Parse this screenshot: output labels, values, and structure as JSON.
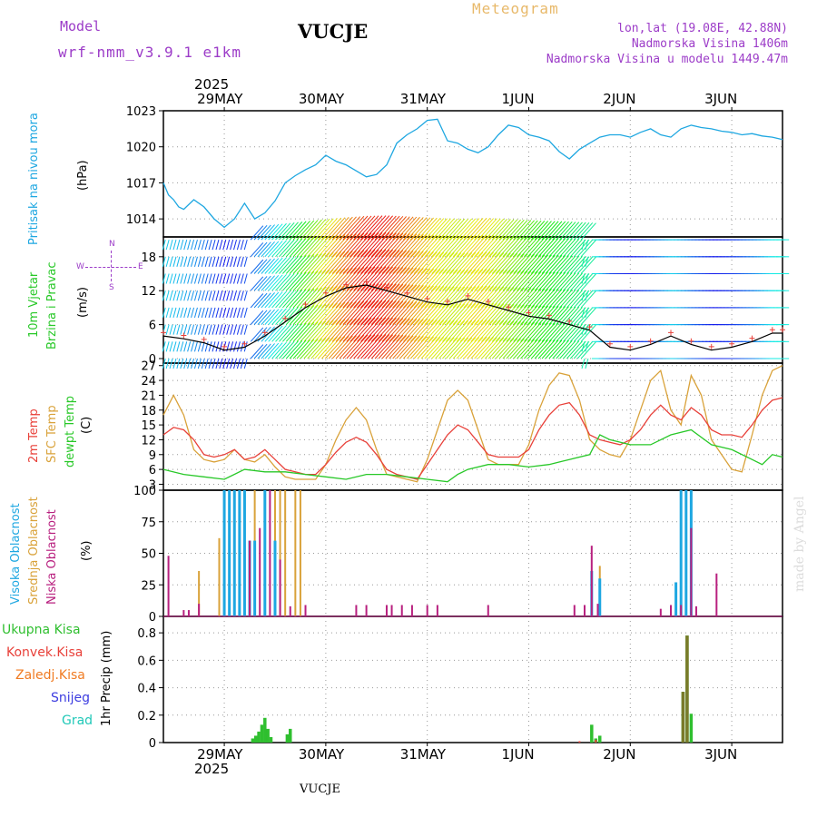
{
  "header": {
    "model_label": "Model",
    "model_name": "wrf-nmm_v3.9.1 e1km",
    "station": "VUCJE",
    "product": "Meteogram",
    "coords": "lon,lat (19.08E, 42.88N)",
    "altitude": "Nadmorska Visina 1406m",
    "model_altitude": "Nadmorska Visina u modelu 1449.47m",
    "watermark": "made by Angel",
    "footer_station": "VUCJE"
  },
  "time_axis": {
    "year": "2025",
    "days": [
      "29MAY",
      "30MAY",
      "31MAY",
      "1JUN",
      "2JUN",
      "3JUN"
    ],
    "day_positions": [
      1,
      2,
      3,
      4,
      5,
      6
    ],
    "range": [
      0.4,
      6.5
    ]
  },
  "colors": {
    "pressure": "#1ea7e1",
    "temp2m": "#e8413a",
    "sfc_temp": "#d9a23a",
    "dewpoint": "#28c828",
    "high_cloud": "#1ea7e1",
    "mid_cloud": "#d9a23a",
    "low_cloud": "#b8207f",
    "total_rain": "#2fbf2f",
    "conv_rain": "#e8413a",
    "freezing_rain": "#f07b22",
    "snow": "#3d3de0",
    "hail": "#20c8b8",
    "wind_dir_label": "#9c3cc8"
  },
  "panels": {
    "pressure": {
      "ylabel_a": "Pritisak na nivou mora",
      "ylabel_b": "(hPa)",
      "ticks": [
        "1014",
        "1017",
        "1020",
        "1023"
      ]
    },
    "wind": {
      "ylabel_a": "10m Vjetar",
      "ylabel_b": "Brzina i Pravac",
      "ylabel_c": "(m/s)",
      "ticks": [
        "0",
        "6",
        "12",
        "18"
      ],
      "compass_n": "N",
      "compass_s": "S",
      "compass_e": "E",
      "compass_w": "W"
    },
    "temperature": {
      "ylabel_a": "2m Temp",
      "ylabel_b": "SFC Temp",
      "ylabel_c": "dewpt Temp",
      "ylabel_d": "(C)",
      "ticks": [
        "3",
        "6",
        "9",
        "12",
        "15",
        "18",
        "21",
        "24",
        "27"
      ]
    },
    "cloud": {
      "ylabel_a": "Visoka Oblacnost",
      "ylabel_b": "Srednja Oblacnost",
      "ylabel_c": "Niska Oblacnost",
      "ylabel_d": "(%)",
      "ticks": [
        "0",
        "25",
        "50",
        "75",
        "100"
      ]
    },
    "precip": {
      "legend": [
        "Ukupna Kisa",
        "Konvek.Kisa",
        "Zaledj.Kisa",
        "Snijeg",
        "Grad"
      ],
      "ylabel": "1hr Precip (mm)",
      "ticks": [
        "0",
        "0.2",
        "0.4",
        "0.6",
        "0.8"
      ]
    }
  },
  "chart_data": [
    {
      "type": "line",
      "panel": "pressure",
      "ylim": [
        1012.5,
        1023
      ],
      "series": [
        {
          "key": "pressure",
          "x": [
            0.4,
            0.45,
            0.5,
            0.55,
            0.6,
            0.7,
            0.8,
            0.9,
            1.0,
            1.1,
            1.2,
            1.3,
            1.4,
            1.5,
            1.6,
            1.7,
            1.8,
            1.9,
            2.0,
            2.1,
            2.2,
            2.3,
            2.4,
            2.5,
            2.6,
            2.7,
            2.8,
            2.9,
            3.0,
            3.1,
            3.2,
            3.3,
            3.4,
            3.5,
            3.6,
            3.7,
            3.8,
            3.9,
            4.0,
            4.1,
            4.2,
            4.3,
            4.4,
            4.5,
            4.6,
            4.7,
            4.8,
            4.9,
            5.0,
            5.1,
            5.2,
            5.3,
            5.4,
            5.5,
            5.6,
            5.7,
            5.8,
            5.9,
            6.0,
            6.1,
            6.2,
            6.3,
            6.4,
            6.5
          ],
          "y": [
            1017.0,
            1016.0,
            1015.6,
            1015.0,
            1014.8,
            1015.6,
            1015.0,
            1014.0,
            1013.3,
            1014.0,
            1015.3,
            1014.0,
            1014.5,
            1015.5,
            1017.0,
            1017.6,
            1018.1,
            1018.5,
            1019.3,
            1018.8,
            1018.5,
            1018.0,
            1017.5,
            1017.7,
            1018.5,
            1020.3,
            1021.0,
            1021.5,
            1022.2,
            1022.3,
            1020.5,
            1020.3,
            1019.8,
            1019.5,
            1020.0,
            1021.0,
            1021.8,
            1021.6,
            1021.0,
            1020.8,
            1020.5,
            1019.6,
            1019.0,
            1019.8,
            1020.3,
            1020.8,
            1021.0,
            1021.0,
            1020.8,
            1021.2,
            1021.5,
            1021.0,
            1020.8,
            1021.5,
            1021.8,
            1021.6,
            1021.5,
            1021.3,
            1021.2,
            1021.0,
            1021.1,
            1020.9,
            1020.8,
            1020.6
          ]
        }
      ]
    },
    {
      "type": "line",
      "panel": "wind",
      "ylim": [
        -0.8,
        21.5
      ],
      "note_barbs": "wind vectors drawn along rows",
      "series": [
        {
          "key": "wind_speed",
          "x": [
            0.4,
            0.6,
            0.8,
            1.0,
            1.2,
            1.4,
            1.6,
            1.8,
            2.0,
            2.2,
            2.4,
            2.6,
            2.8,
            3.0,
            3.2,
            3.4,
            3.6,
            3.8,
            4.0,
            4.2,
            4.4,
            4.6,
            4.8,
            5.0,
            5.2,
            5.4,
            5.6,
            5.8,
            6.0,
            6.2,
            6.4,
            6.5
          ],
          "y": [
            4,
            3.5,
            2.8,
            1.5,
            2.0,
            4.0,
            6.5,
            9.0,
            11.0,
            12.5,
            13.0,
            12.0,
            11.0,
            10.0,
            9.5,
            10.5,
            9.5,
            8.5,
            7.5,
            7.0,
            6.0,
            5.0,
            2.0,
            1.5,
            2.5,
            4.0,
            2.5,
            1.5,
            2.0,
            3.0,
            4.5,
            4.5
          ]
        }
      ]
    },
    {
      "type": "line",
      "panel": "temperature",
      "ylim": [
        1.8,
        27.5
      ],
      "series": [
        {
          "key": "temp2m",
          "x": [
            0.4,
            0.5,
            0.6,
            0.7,
            0.8,
            0.9,
            1.0,
            1.1,
            1.2,
            1.3,
            1.4,
            1.5,
            1.6,
            1.7,
            1.8,
            1.9,
            2.0,
            2.1,
            2.2,
            2.3,
            2.4,
            2.5,
            2.6,
            2.7,
            2.8,
            2.9,
            3.0,
            3.1,
            3.2,
            3.3,
            3.4,
            3.5,
            3.6,
            3.7,
            3.8,
            3.9,
            4.0,
            4.1,
            4.2,
            4.3,
            4.4,
            4.5,
            4.6,
            4.7,
            4.8,
            4.9,
            5.0,
            5.1,
            5.2,
            5.3,
            5.4,
            5.5,
            5.6,
            5.7,
            5.8,
            5.9,
            6.0,
            6.1,
            6.2,
            6.3,
            6.4,
            6.5
          ],
          "y": [
            13,
            14.5,
            14,
            12,
            9,
            8.5,
            9,
            10,
            8,
            8.5,
            10,
            8,
            6,
            5.5,
            5,
            5,
            7,
            9.5,
            11.5,
            12.5,
            11.5,
            9,
            6,
            5,
            4.5,
            4,
            7,
            10,
            13,
            15,
            14,
            11.5,
            9,
            8.5,
            8.5,
            8.5,
            10,
            14,
            17,
            19,
            19.5,
            17,
            13,
            12,
            11.5,
            11,
            12,
            14,
            17,
            19,
            17,
            16,
            18.5,
            17,
            14,
            13,
            13,
            12.5,
            15,
            18,
            20,
            20.5
          ]
        },
        {
          "key": "sfc_temp",
          "x": [
            0.4,
            0.5,
            0.6,
            0.7,
            0.8,
            0.9,
            1.0,
            1.1,
            1.2,
            1.3,
            1.4,
            1.5,
            1.6,
            1.7,
            1.8,
            1.9,
            2.0,
            2.1,
            2.2,
            2.3,
            2.4,
            2.5,
            2.6,
            2.7,
            2.8,
            2.9,
            3.0,
            3.1,
            3.2,
            3.3,
            3.4,
            3.5,
            3.6,
            3.7,
            3.8,
            3.9,
            4.0,
            4.1,
            4.2,
            4.3,
            4.4,
            4.5,
            4.6,
            4.7,
            4.8,
            4.9,
            5.0,
            5.1,
            5.2,
            5.3,
            5.4,
            5.5,
            5.6,
            5.7,
            5.8,
            5.9,
            6.0,
            6.1,
            6.2,
            6.3,
            6.4,
            6.5
          ],
          "y": [
            17,
            21,
            17,
            10,
            8,
            7.5,
            8,
            10,
            8,
            7.5,
            9,
            6.5,
            4.5,
            4,
            4,
            4,
            7,
            12,
            16,
            18.5,
            16,
            10,
            5,
            4.5,
            4,
            3.5,
            8,
            14,
            20,
            22,
            20,
            14,
            8,
            7,
            7,
            7,
            11,
            18,
            23,
            25.5,
            25,
            20,
            12,
            10,
            9,
            8.5,
            12,
            18,
            24,
            26,
            18,
            15,
            25,
            21,
            12,
            9,
            6,
            5.5,
            13,
            21,
            26,
            27
          ]
        },
        {
          "key": "dewpoint",
          "x": [
            0.4,
            0.6,
            0.8,
            1.0,
            1.2,
            1.4,
            1.6,
            1.8,
            2.0,
            2.2,
            2.4,
            2.6,
            2.8,
            3.0,
            3.2,
            3.3,
            3.4,
            3.6,
            3.8,
            4.0,
            4.2,
            4.4,
            4.6,
            4.7,
            4.8,
            5.0,
            5.2,
            5.4,
            5.6,
            5.8,
            6.0,
            6.2,
            6.3,
            6.4,
            6.5
          ],
          "y": [
            6,
            5,
            4.5,
            4,
            6,
            5.5,
            5.5,
            5,
            4.5,
            4,
            5,
            5,
            4.5,
            4,
            3.5,
            5,
            6,
            7,
            7,
            6.5,
            7,
            8,
            9,
            13,
            12,
            11,
            11,
            13,
            14,
            11,
            10,
            8,
            7,
            9,
            8.5
          ]
        }
      ]
    },
    {
      "type": "bar",
      "panel": "cloud",
      "ylim": [
        0,
        100
      ],
      "series": [
        {
          "key": "low_cloud",
          "x": [
            0.45,
            0.6,
            0.65,
            0.75,
            1.25,
            1.35,
            1.45,
            1.55,
            1.65,
            1.8,
            2.3,
            2.4,
            2.6,
            2.65,
            2.75,
            2.85,
            3.0,
            3.1,
            3.6,
            4.45,
            4.55,
            4.62,
            4.68,
            5.3,
            5.4,
            5.5,
            5.6,
            5.65,
            5.85
          ],
          "y": [
            48,
            5,
            5,
            10,
            60,
            70,
            100,
            45,
            8,
            9,
            9,
            9,
            9,
            9,
            9,
            9,
            9,
            9,
            9,
            9,
            9,
            56,
            10,
            6,
            9,
            9,
            70,
            8,
            34
          ]
        },
        {
          "key": "mid_cloud",
          "x": [
            0.75,
            0.95,
            1.0,
            1.05,
            1.1,
            1.15,
            1.2,
            1.3,
            1.4,
            1.5,
            1.55,
            1.6,
            1.7,
            1.75,
            4.62,
            4.7,
            5.5,
            5.55
          ],
          "y": [
            36,
            62,
            100,
            100,
            100,
            100,
            100,
            100,
            100,
            100,
            100,
            100,
            100,
            100,
            22,
            40,
            75,
            75
          ]
        },
        {
          "key": "high_cloud",
          "x": [
            1.0,
            1.05,
            1.1,
            1.15,
            1.2,
            1.25,
            1.3,
            1.4,
            1.5,
            4.62,
            4.7,
            5.45,
            5.5,
            5.55,
            5.6
          ],
          "y": [
            100,
            100,
            100,
            100,
            100,
            60,
            60,
            100,
            60,
            36,
            30,
            27,
            100,
            100,
            100
          ]
        }
      ]
    },
    {
      "type": "bar",
      "panel": "precip",
      "ylim": [
        0,
        0.92
      ],
      "series": [
        {
          "key": "total_rain",
          "x": [
            1.28,
            1.31,
            1.34,
            1.37,
            1.4,
            1.43,
            1.46,
            1.62,
            1.65,
            4.62,
            4.66,
            4.7,
            5.52,
            5.56,
            5.6
          ],
          "y": [
            0.03,
            0.05,
            0.08,
            0.13,
            0.18,
            0.1,
            0.04,
            0.06,
            0.1,
            0.13,
            0.03,
            0.05,
            0.37,
            0.78,
            0.21
          ]
        },
        {
          "key": "conv_rain",
          "x": [
            4.5,
            4.66,
            5.52
          ],
          "y": [
            0.01,
            0.02,
            0.1
          ]
        }
      ]
    }
  ]
}
